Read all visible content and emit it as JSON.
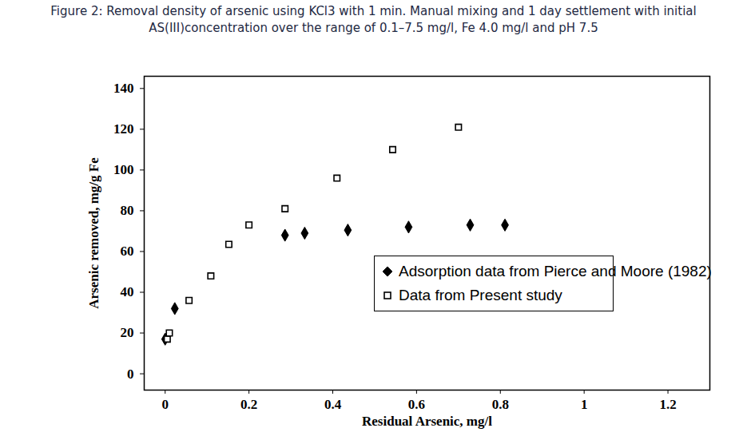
{
  "chart_data": {
    "type": "scatter",
    "title": "Figure 2: Removal density of arsenic using KCl3 with 1 min. Manual mixing and 1 day settlement with initial AS(III)concentration over the range of 0.1–7.5 mg/l, Fe 4.0 mg/l and pH 7.5",
    "x_label": "Residual Arsenic, mg/l",
    "y_label": "Arsenic removed, mg/g Fe",
    "xlim": [
      -0.05,
      1.3
    ],
    "ylim": [
      -8,
      146
    ],
    "xticks": [
      0,
      0.2,
      0.4,
      0.6,
      0.8,
      1,
      1.2
    ],
    "yticks": [
      0,
      20,
      40,
      60,
      80,
      100,
      120,
      140
    ],
    "grid": false,
    "legend": "lower right",
    "series": [
      {
        "name": "Adsorption data from Pierce and Moore (1982)",
        "color": "#000000",
        "marker": "diamond",
        "x": [
          0,
          0.023,
          0.286,
          0.333,
          0.436,
          0.581,
          0.728,
          0.811
        ],
        "values": [
          17,
          32,
          68,
          69,
          70.5,
          72,
          73,
          73
        ]
      },
      {
        "name": "Data from Present study",
        "color": "#000000",
        "marker": "square_open",
        "x": [
          0.005,
          0.01,
          0.057,
          0.109,
          0.152,
          0.2,
          0.286,
          0.41,
          0.543,
          0.7
        ],
        "values": [
          17,
          20,
          36,
          48,
          63.5,
          73,
          81,
          96,
          110,
          121
        ]
      }
    ]
  }
}
